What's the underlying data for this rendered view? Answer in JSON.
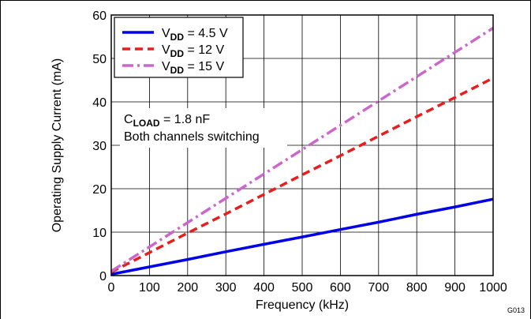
{
  "chart_data": {
    "type": "line",
    "xlabel": "Frequency (kHz)",
    "ylabel": "Operating Supply Current (mA)",
    "xlim": [
      0,
      1000
    ],
    "ylim": [
      0,
      60
    ],
    "x_ticks": [
      "0",
      "100",
      "200",
      "300",
      "400",
      "500",
      "600",
      "700",
      "800",
      "900",
      "1000"
    ],
    "y_ticks": [
      "0",
      "10",
      "20",
      "30",
      "40",
      "50",
      "60"
    ],
    "grid": true,
    "legend_position": "top-left",
    "figure_id": "G013",
    "annotation": {
      "line1_prefix": "C",
      "line1_sub": "LOAD",
      "line1_suffix": " = 1.8 nF",
      "line2": "Both channels switching"
    },
    "series": [
      {
        "name": "VDD = 4.5 V",
        "legend_prefix": "V",
        "legend_sub": "DD",
        "legend_suffix": " = 4.5 V",
        "color": "#0000e6",
        "dash": "solid",
        "x": [
          0,
          100,
          200,
          300,
          400,
          500,
          600,
          700,
          800,
          900,
          1000
        ],
        "y": [
          0.3,
          2.0,
          3.7,
          5.5,
          7.2,
          8.9,
          10.6,
          12.3,
          14.1,
          15.8,
          17.6
        ]
      },
      {
        "name": "VDD = 12 V",
        "legend_prefix": "V",
        "legend_sub": "DD",
        "legend_suffix": " = 12 V",
        "color": "#e61e1e",
        "dash": "dashed",
        "x": [
          0,
          100,
          200,
          300,
          400,
          500,
          600,
          700,
          800,
          900,
          1000
        ],
        "y": [
          0.8,
          5.3,
          9.8,
          14.2,
          18.7,
          23.2,
          27.6,
          32.1,
          36.6,
          41.0,
          45.5
        ]
      },
      {
        "name": "VDD = 15 V",
        "legend_prefix": "V",
        "legend_sub": "DD",
        "legend_suffix": " = 15 V",
        "color": "#cc66cc",
        "dash": "dashdot",
        "x": [
          0,
          100,
          200,
          300,
          400,
          500,
          600,
          700,
          800,
          900,
          1000
        ],
        "y": [
          1.0,
          6.6,
          12.2,
          17.8,
          23.4,
          29.0,
          34.6,
          40.2,
          45.8,
          51.4,
          57.0
        ]
      }
    ]
  }
}
